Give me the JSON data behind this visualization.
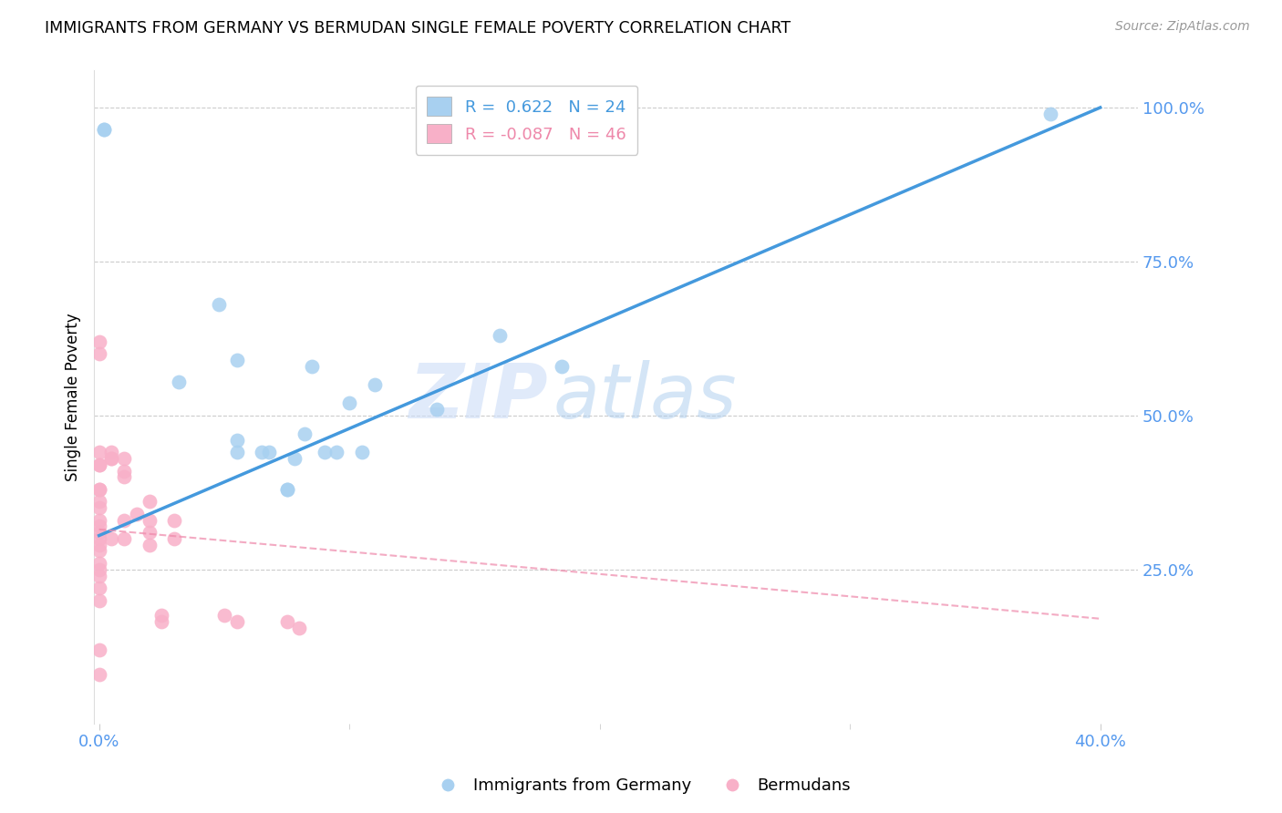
{
  "title": "IMMIGRANTS FROM GERMANY VS BERMUDAN SINGLE FEMALE POVERTY CORRELATION CHART",
  "source": "Source: ZipAtlas.com",
  "ylabel": "Single Female Poverty",
  "legend_blue_r": "0.622",
  "legend_blue_n": "24",
  "legend_pink_r": "-0.087",
  "legend_pink_n": "46",
  "blue_color": "#a8d0f0",
  "pink_color": "#f8b0c8",
  "blue_line_color": "#4499dd",
  "pink_line_color": "#ee88aa",
  "grid_color": "#cccccc",
  "axis_color": "#5599ee",
  "watermark_zip": "ZIP",
  "watermark_atlas": "atlas",
  "blue_points_x": [
    0.002,
    0.002,
    0.032,
    0.048,
    0.055,
    0.055,
    0.055,
    0.065,
    0.068,
    0.075,
    0.075,
    0.078,
    0.082,
    0.085,
    0.09,
    0.095,
    0.1,
    0.105,
    0.11,
    0.135,
    0.16,
    0.185,
    0.38
  ],
  "blue_points_y": [
    0.965,
    0.965,
    0.555,
    0.68,
    0.46,
    0.44,
    0.59,
    0.44,
    0.44,
    0.38,
    0.38,
    0.43,
    0.47,
    0.58,
    0.44,
    0.44,
    0.52,
    0.44,
    0.55,
    0.51,
    0.63,
    0.58,
    0.99
  ],
  "pink_points_x": [
    0.0,
    0.0,
    0.0,
    0.0,
    0.0,
    0.0,
    0.0,
    0.0,
    0.0,
    0.0,
    0.0,
    0.0,
    0.0,
    0.0,
    0.0,
    0.0,
    0.0,
    0.0,
    0.0,
    0.0,
    0.0,
    0.0,
    0.005,
    0.005,
    0.005,
    0.005,
    0.01,
    0.01,
    0.01,
    0.01,
    0.01,
    0.015,
    0.02,
    0.02,
    0.02,
    0.02,
    0.025,
    0.025,
    0.03,
    0.03,
    0.05,
    0.055,
    0.075,
    0.08
  ],
  "pink_points_y": [
    0.62,
    0.6,
    0.44,
    0.42,
    0.42,
    0.38,
    0.38,
    0.36,
    0.35,
    0.33,
    0.32,
    0.31,
    0.3,
    0.29,
    0.28,
    0.26,
    0.25,
    0.24,
    0.22,
    0.2,
    0.12,
    0.08,
    0.44,
    0.43,
    0.43,
    0.3,
    0.43,
    0.41,
    0.4,
    0.33,
    0.3,
    0.34,
    0.36,
    0.33,
    0.31,
    0.29,
    0.175,
    0.165,
    0.33,
    0.3,
    0.175,
    0.165,
    0.165,
    0.155
  ],
  "blue_line_x0": 0.0,
  "blue_line_y0": 0.305,
  "blue_line_x1": 0.4,
  "blue_line_y1": 1.0,
  "pink_line_x0": 0.0,
  "pink_line_y0": 0.315,
  "pink_line_x1": 0.4,
  "pink_line_y1": 0.17,
  "xlim_min": -0.002,
  "xlim_max": 0.415,
  "ylim_min": 0.0,
  "ylim_max": 1.06,
  "xticks": [
    0.0,
    0.4
  ],
  "xtick_labels": [
    "0.0%",
    "40.0%"
  ],
  "yticks": [
    0.25,
    0.5,
    0.75,
    1.0
  ],
  "ytick_labels": [
    "25.0%",
    "50.0%",
    "75.0%",
    "100.0%"
  ]
}
